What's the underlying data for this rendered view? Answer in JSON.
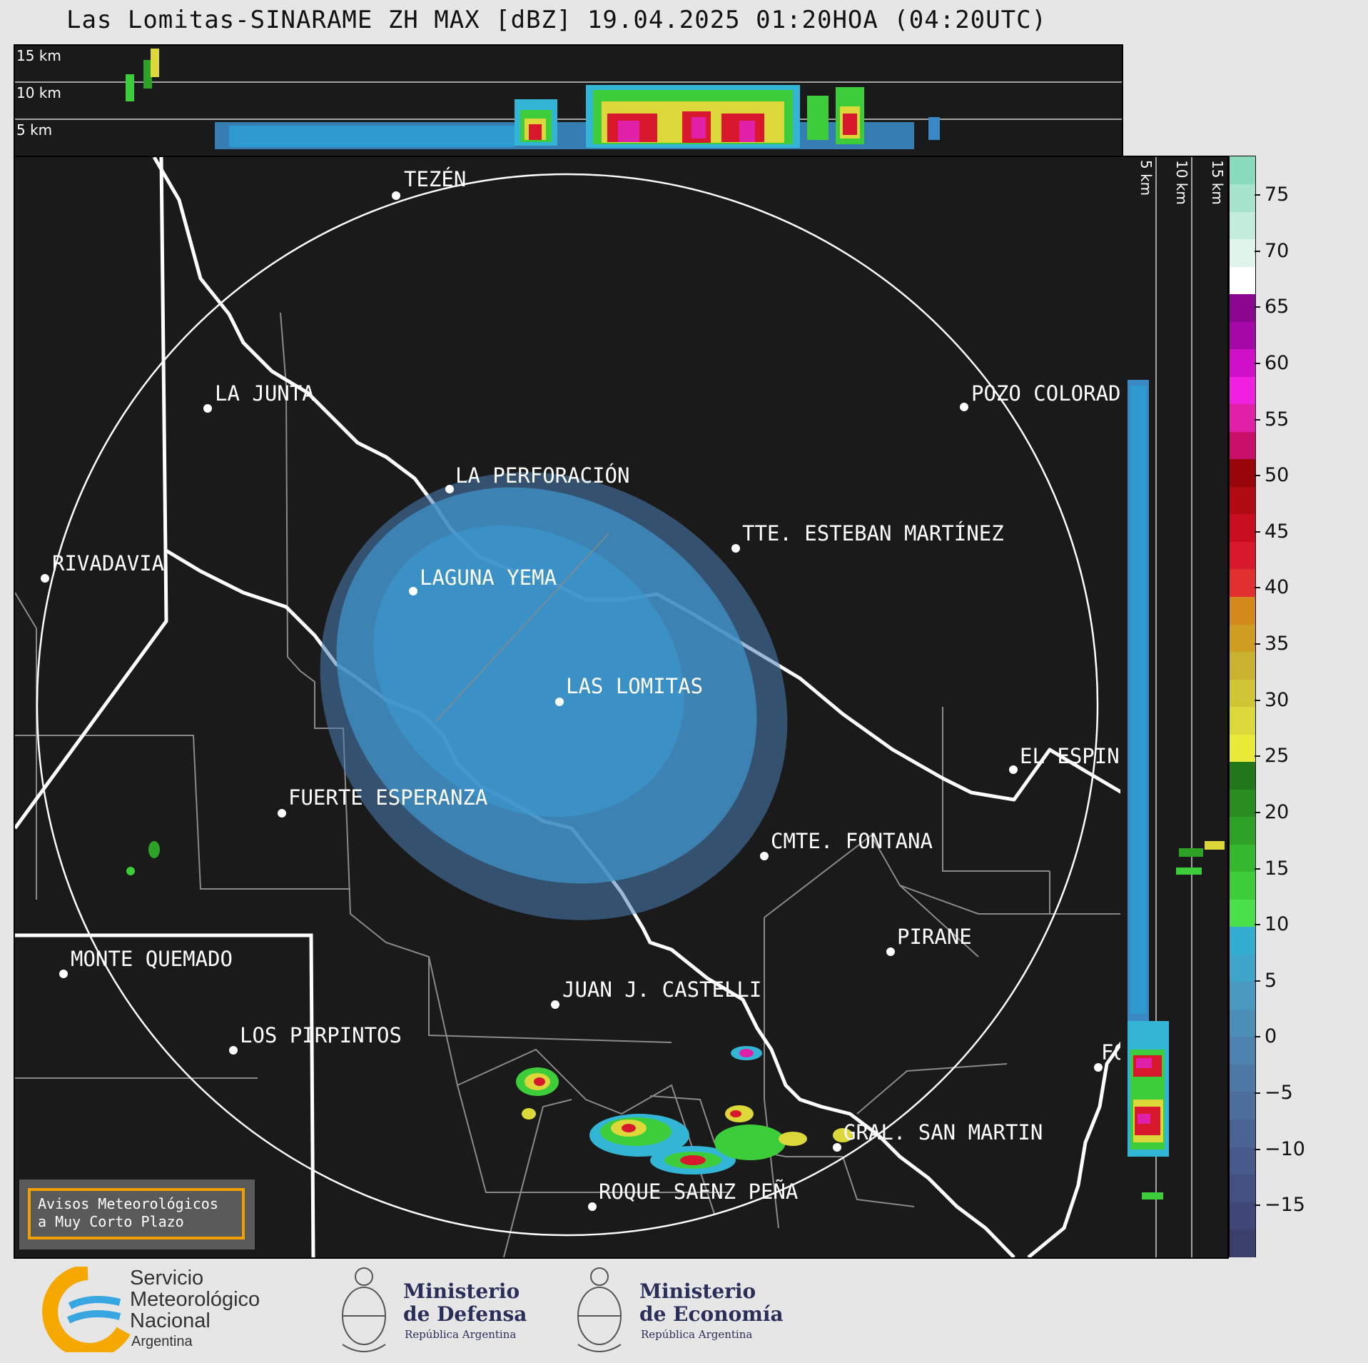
{
  "title": "Las Lomitas-SINARAME ZH MAX [dBZ] 19.04.2025 01:20HOA (04:20UTC)",
  "altitude_labels": [
    "15 km",
    "10 km",
    "5 km"
  ],
  "side_altitude_labels": [
    "5 km",
    "10 km",
    "15 km"
  ],
  "colorbar": {
    "ticks": [
      "75",
      "70",
      "65",
      "60",
      "55",
      "50",
      "45",
      "40",
      "35",
      "30",
      "25",
      "20",
      "15",
      "10",
      "5",
      "0",
      "−5",
      "−10",
      "−15"
    ],
    "colors": [
      "#3b3f6b",
      "#3f4877",
      "#435182",
      "#475a8b",
      "#4a6494",
      "#4c6e9d",
      "#4d78a5",
      "#4d83ae",
      "#4b8fb7",
      "#4799c0",
      "#3fa4c9",
      "#33aed2",
      "#49e04a",
      "#3ecd3a",
      "#35b82e",
      "#2ea226",
      "#298d20",
      "#22771b",
      "#e9ea3a",
      "#dcd83a",
      "#cfc536",
      "#c9b22f",
      "#cf9d22",
      "#d4891c",
      "#e03030",
      "#d8182c",
      "#c80e1e",
      "#b00a12",
      "#98060a",
      "#c8106a",
      "#e020a8",
      "#f020e0",
      "#d010c8",
      "#a608a8",
      "#8a0690",
      "#ffffff",
      "#e0f4ec",
      "#c4ecdc",
      "#a6e4cc",
      "#88dcbc"
    ]
  },
  "cities": [
    {
      "name": "TEZÉN"
    },
    {
      "name": "LA JUNTA"
    },
    {
      "name": "POZO COLORADO"
    },
    {
      "name": "LA PERFORACIÓN"
    },
    {
      "name": "TTE. ESTEBAN MARTÍNEZ"
    },
    {
      "name": "RIVADAVIA"
    },
    {
      "name": "LAGUNA YEMA"
    },
    {
      "name": "LAS LOMITAS"
    },
    {
      "name": "EL ESPINILLO"
    },
    {
      "name": "FUERTE ESPERANZA"
    },
    {
      "name": "CMTE. FONTANA"
    },
    {
      "name": "PIRANE"
    },
    {
      "name": "MONTE QUEMADO"
    },
    {
      "name": "JUAN J. CASTELLI"
    },
    {
      "name": "LOS PIRPINTOS"
    },
    {
      "name": "FO"
    },
    {
      "name": "GRAL. SAN MARTIN"
    },
    {
      "name": "ROQUE SAENZ PEÑA"
    }
  ],
  "avisos": {
    "line1": "Avisos Meteorológicos",
    "line2": "a Muy Corto Plazo"
  },
  "footer": {
    "smn_line1": "Servicio",
    "smn_line2": "Meteorológico",
    "smn_line3": "Nacional",
    "smn_line4": "Argentina",
    "defensa_line1": "Ministerio",
    "defensa_line2": "de Defensa",
    "defensa_line3": "República Argentina",
    "economia_line1": "Ministerio",
    "economia_line2": "de Economía",
    "economia_line3": "República Argentina"
  }
}
